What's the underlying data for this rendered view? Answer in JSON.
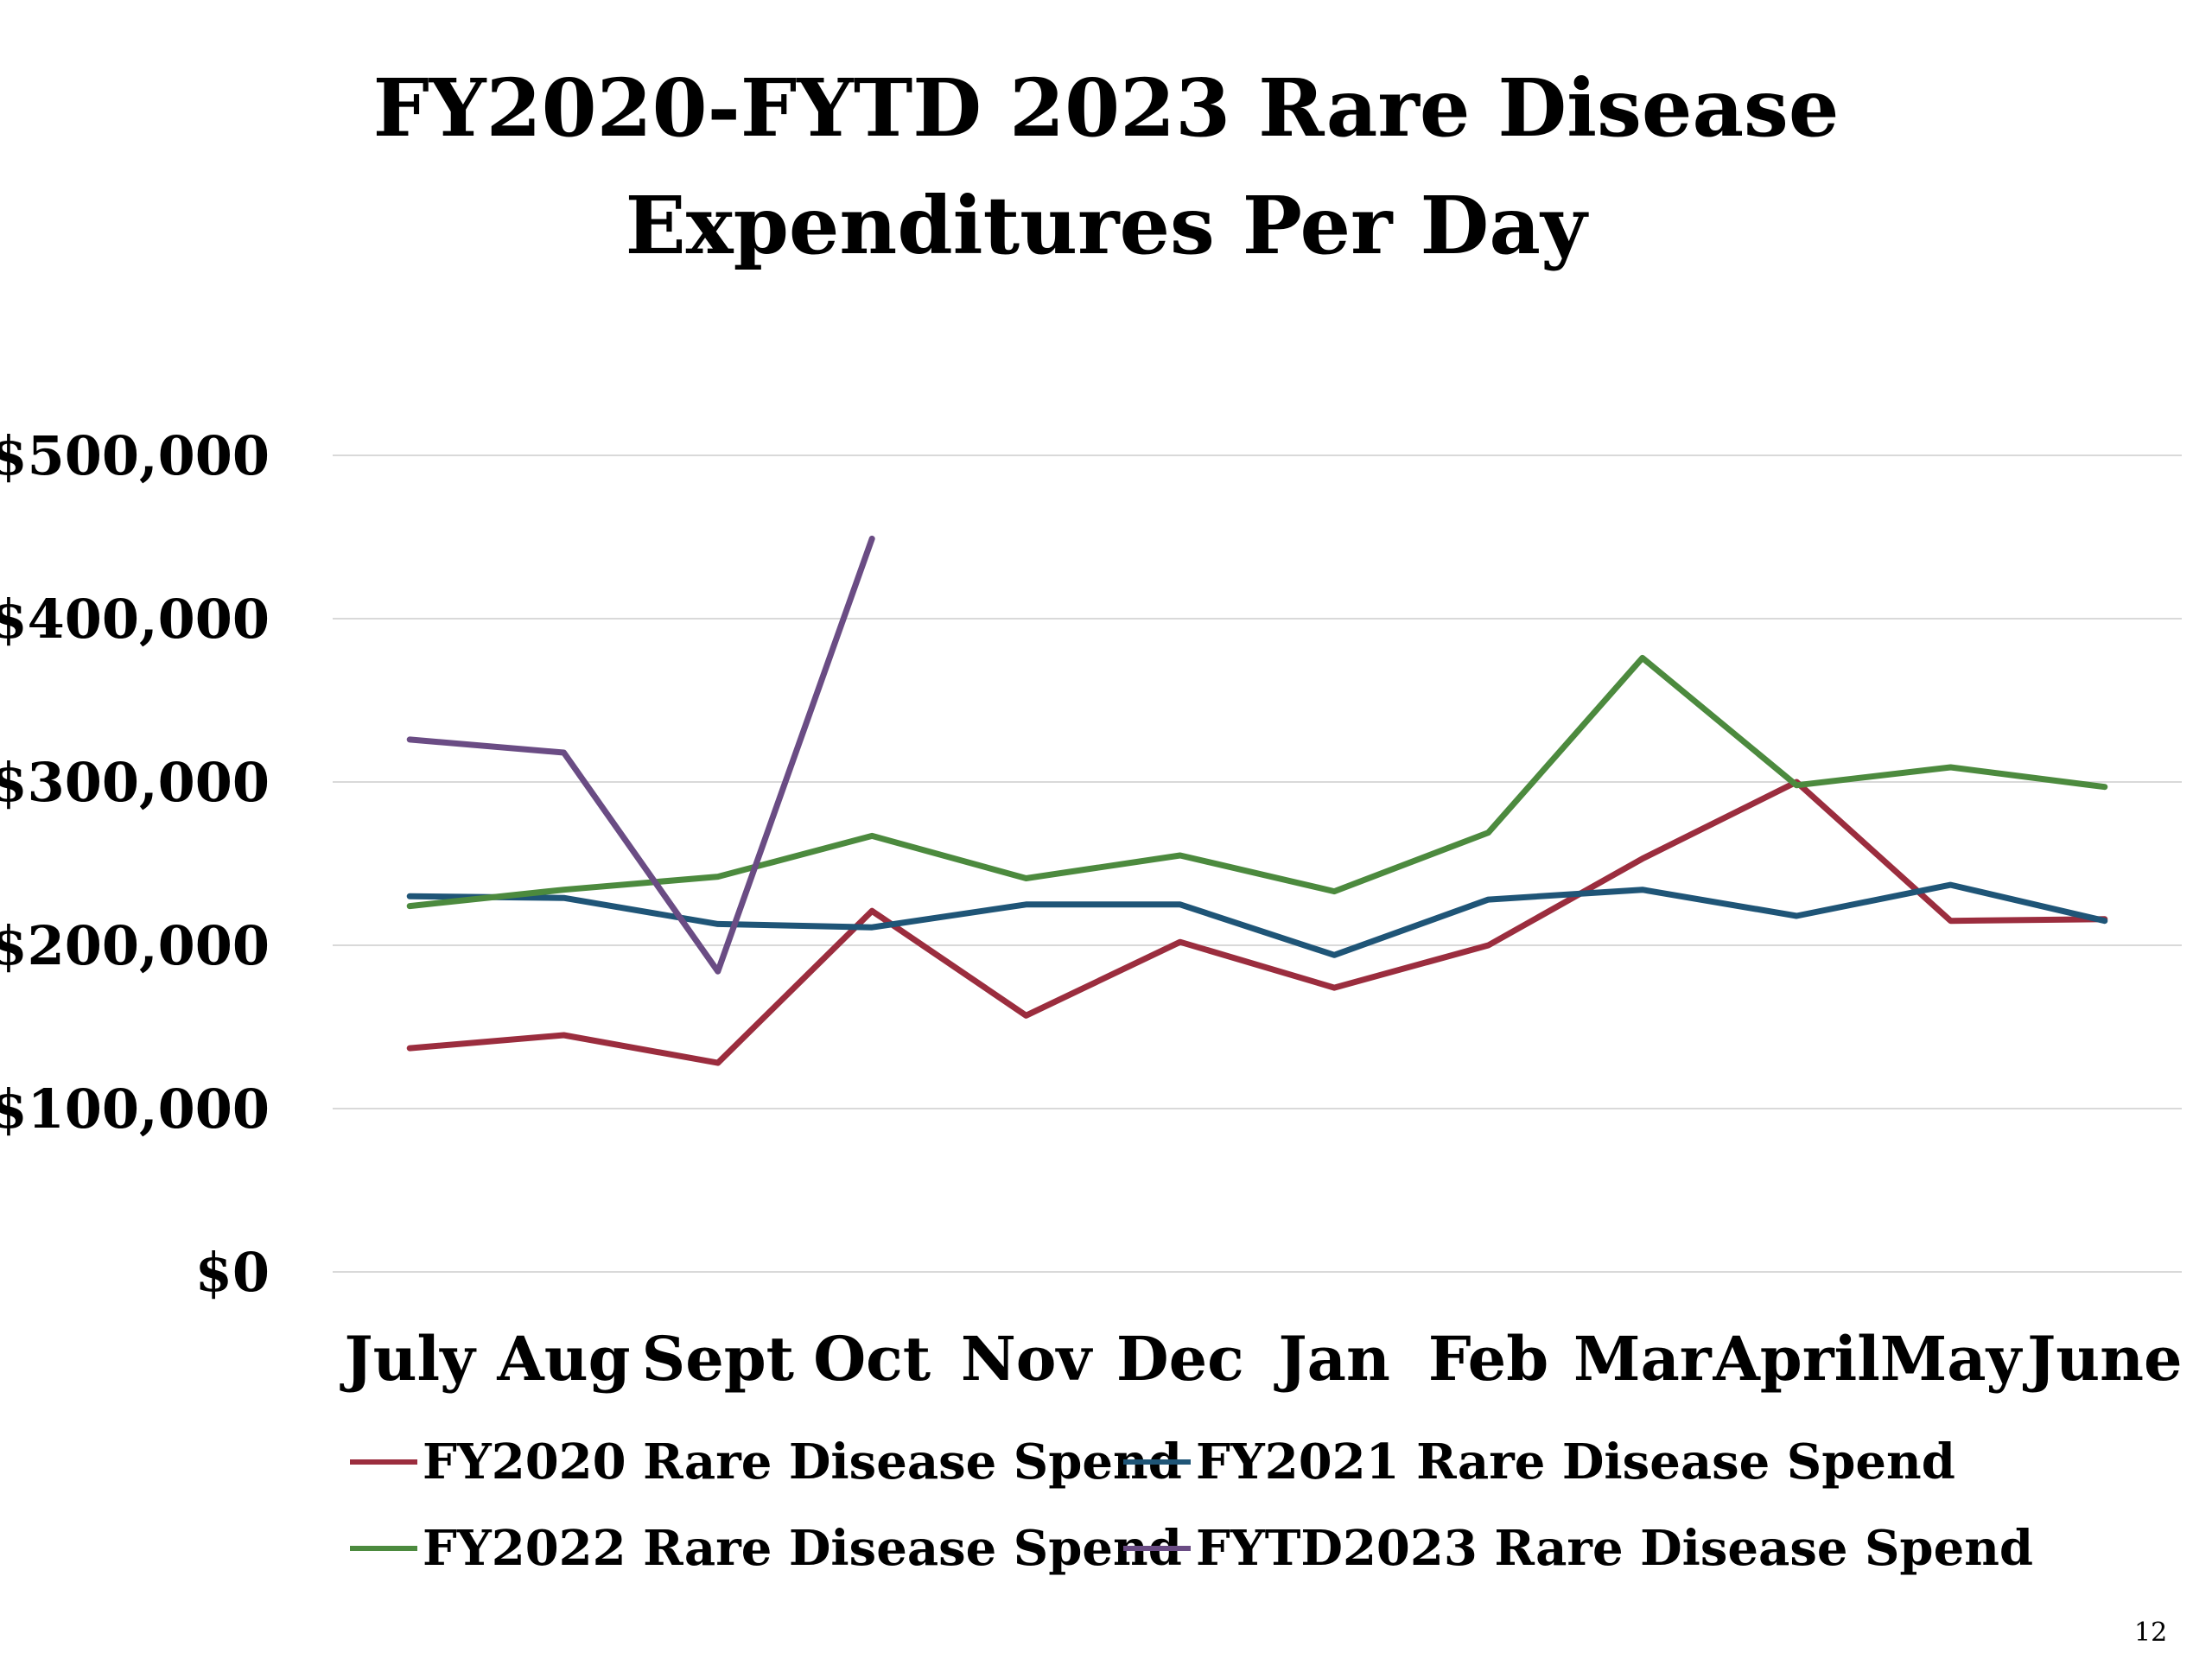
{
  "chart_data": {
    "type": "line",
    "title": "FY2020-FYTD 2023 Rare Disease Expenditures Per Day",
    "title_lines": [
      "FY2020-FYTD 2023 Rare Disease",
      "Expenditures Per Day"
    ],
    "xlabel": "",
    "ylabel": "",
    "ylim": [
      0,
      500000
    ],
    "yticks": [
      0,
      100000,
      200000,
      300000,
      400000,
      500000
    ],
    "ytick_labels": [
      "$0",
      "$100,000",
      "$200,000",
      "$300,000",
      "$400,000",
      "$500,000"
    ],
    "grid": true,
    "legend_position": "bottom",
    "categories": [
      "July",
      "Aug",
      "Sept",
      "Oct",
      "Nov",
      "Dec",
      "Jan",
      "Feb",
      "Mar",
      "April",
      "May",
      "June"
    ],
    "series": [
      {
        "name": "FY2020 Rare Disease Spend",
        "color": "#9B2D3E",
        "values": [
          137000,
          145000,
          128000,
          221000,
          157000,
          202000,
          174000,
          200000,
          253000,
          300000,
          215000,
          216000
        ]
      },
      {
        "name": "FY2021 Rare Disease Spend",
        "color": "#1F5577",
        "values": [
          230000,
          229000,
          213000,
          211000,
          225000,
          225000,
          194000,
          228000,
          234000,
          218000,
          237000,
          215000
        ]
      },
      {
        "name": "FY2022 Rare Disease Spend",
        "color": "#4C8A3E",
        "values": [
          224000,
          234000,
          242000,
          267000,
          241000,
          255000,
          233000,
          269000,
          376000,
          298000,
          309000,
          297000
        ]
      },
      {
        "name": "FYTD2023 Rare Disease Spend",
        "color": "#6A4C84",
        "values": [
          326000,
          318000,
          184000,
          449000,
          null,
          null,
          null,
          null,
          null,
          null,
          null,
          null
        ]
      }
    ]
  },
  "slide": {
    "page_number": "12"
  }
}
